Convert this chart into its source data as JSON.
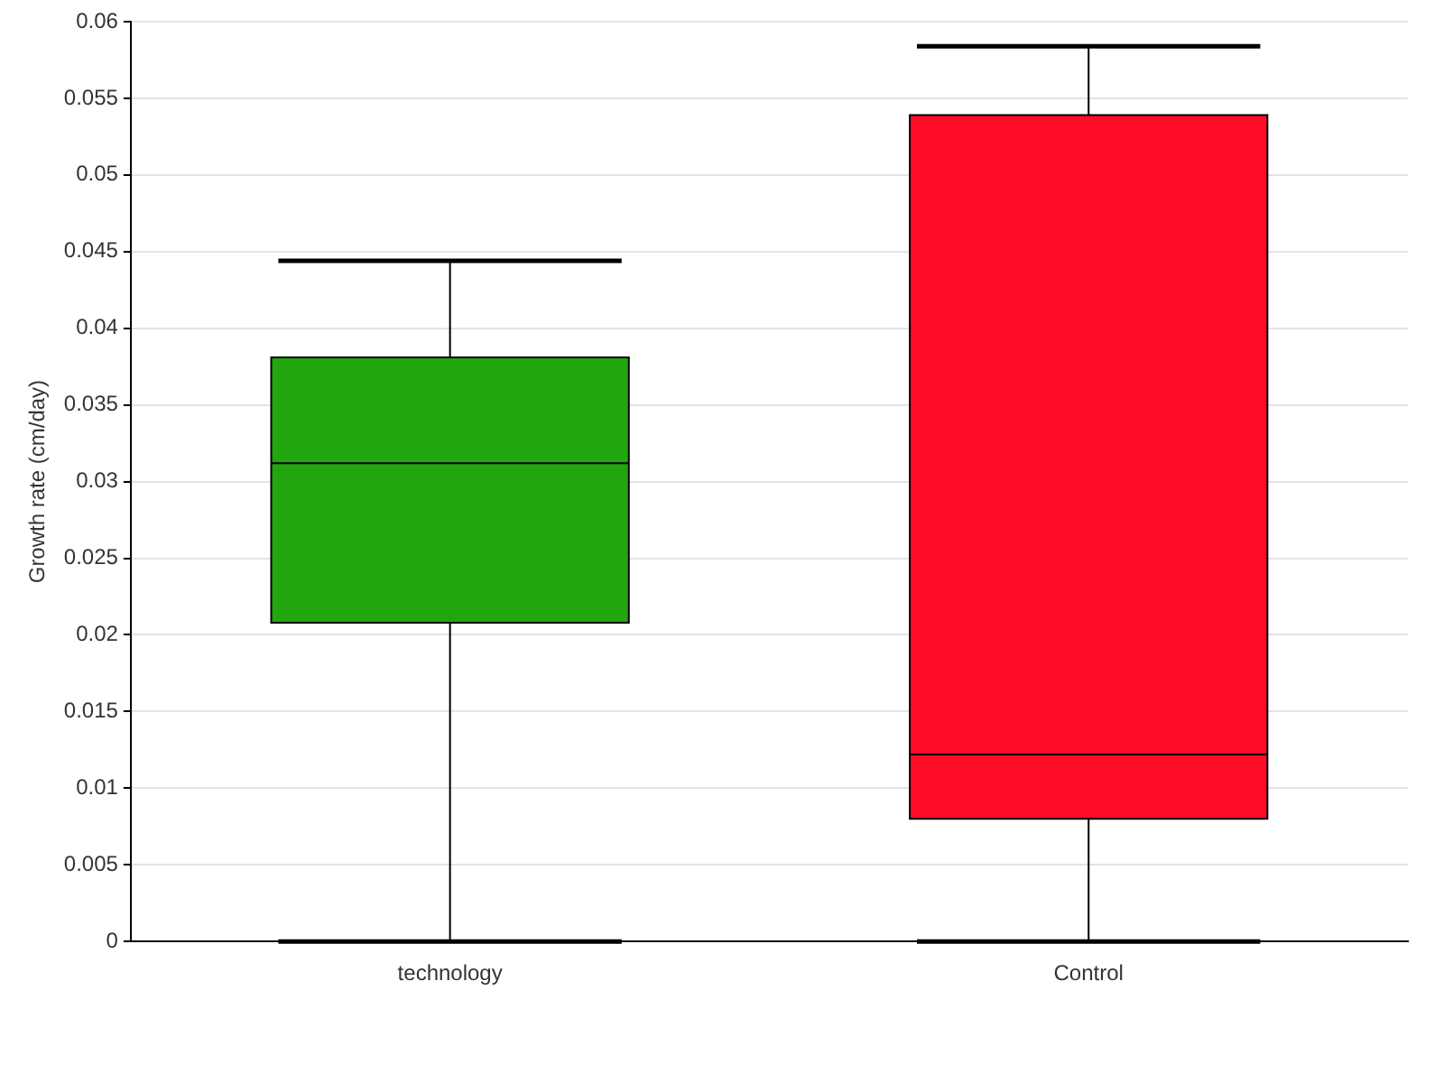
{
  "chart_data": {
    "type": "box",
    "categories": [
      "technology",
      "Control"
    ],
    "ylabel": "Growth rate (cm/day)",
    "colors": [
      "#22a50e",
      "#ff0d28"
    ],
    "boxes": [
      {
        "low": 0,
        "q1": 0.0208,
        "median": 0.0312,
        "q3": 0.0381,
        "high": 0.0444
      },
      {
        "low": 0,
        "q1": 0.008,
        "median": 0.0122,
        "q3": 0.0539,
        "high": 0.0584
      }
    ],
    "ylim": [
      0,
      0.06
    ],
    "yticks": [
      0,
      0.005,
      0.01,
      0.015,
      0.02,
      0.025,
      0.03,
      0.035,
      0.04,
      0.045,
      0.05,
      0.055,
      0.06
    ],
    "grid": "y"
  }
}
